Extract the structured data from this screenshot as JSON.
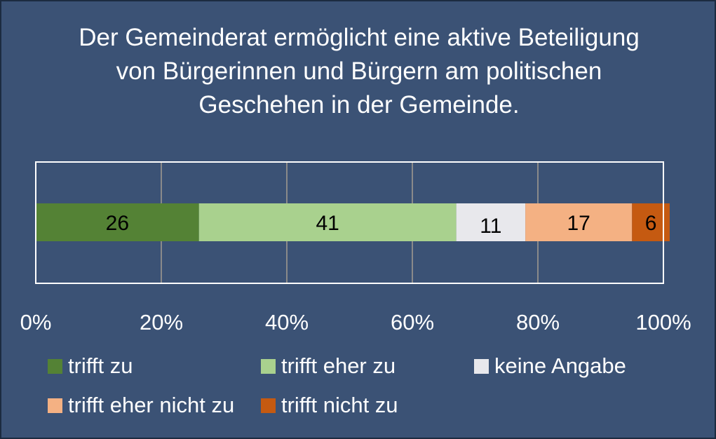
{
  "chart_data": {
    "type": "bar",
    "orientation": "horizontal-stacked-100",
    "title": "Der Gemeinderat ermöglicht eine aktive Beteiligung von Bürgerinnen und Bürgern am politischen Geschehen in der Gemeinde.",
    "x_ticks": [
      "0%",
      "20%",
      "40%",
      "60%",
      "80%",
      "100%"
    ],
    "xlim": [
      0,
      100
    ],
    "grid": true,
    "legend_position": "bottom",
    "series": [
      {
        "name": "trifft zu",
        "value": 26,
        "label": "26",
        "color": "#548235",
        "label_color": "#000000"
      },
      {
        "name": "trifft eher zu",
        "value": 41,
        "label": "41",
        "color": "#a9d18e",
        "label_color": "#000000"
      },
      {
        "name": "keine Angabe",
        "value": 11,
        "label": "11",
        "color": "#e8e8ec",
        "label_color": "#000000"
      },
      {
        "name": "trifft eher nicht zu",
        "value": 17,
        "label": "17",
        "color": "#f4b183",
        "label_color": "#000000"
      },
      {
        "name": "trifft nicht zu",
        "value": 6,
        "label": "6",
        "color": "#c55a11",
        "label_color": "#000000"
      }
    ]
  },
  "colors": {
    "background": "#3b5275",
    "plot_background": "#3b5275",
    "plot_border": "#ffffff",
    "gridline": "#8a8a8a",
    "text": "#ffffff"
  }
}
